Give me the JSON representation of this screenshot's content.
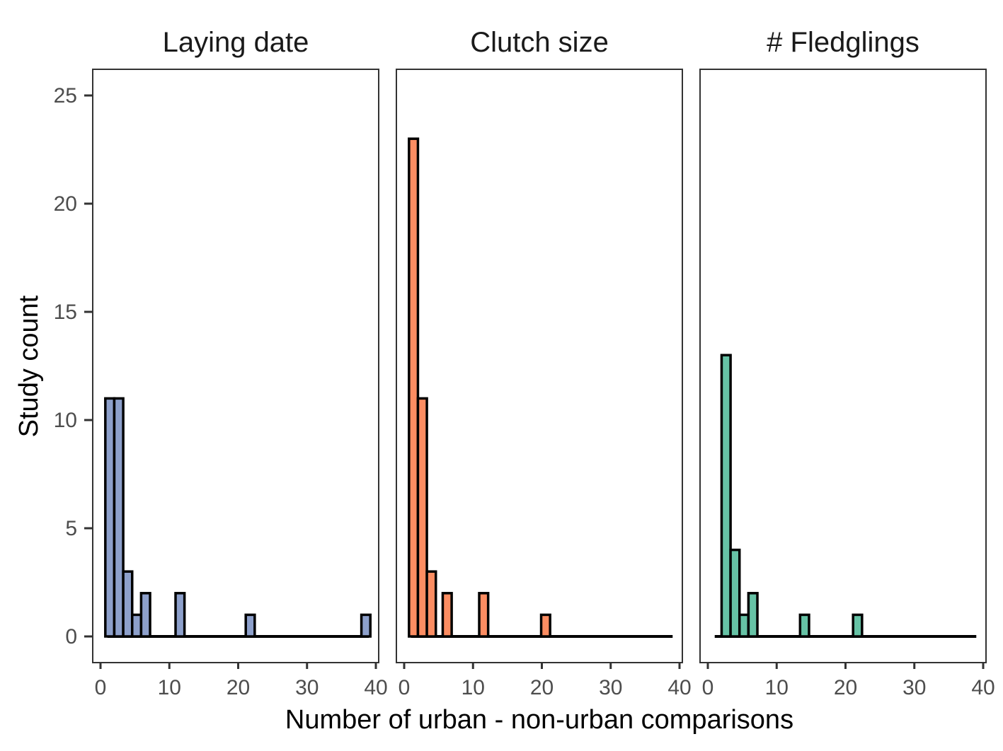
{
  "chart_data": {
    "type": "bar",
    "xlabel": "Number of urban - non-urban comparisons",
    "ylabel": "Study count",
    "xlim": [
      -1,
      40
    ],
    "ylim": [
      -1.2,
      26.2
    ],
    "x_ticks": [
      0,
      10,
      20,
      30,
      40
    ],
    "y_ticks": [
      0,
      5,
      10,
      15,
      20,
      25
    ],
    "grid": false,
    "bin_width": 1.3,
    "range": [
      1,
      39
    ],
    "panels": [
      {
        "title": "Laying date",
        "color": "#8DA0CB",
        "bars": [
          {
            "x0": 0.7,
            "count": 11
          },
          {
            "x0": 2.0,
            "count": 11
          },
          {
            "x0": 3.3,
            "count": 3
          },
          {
            "x0": 4.6,
            "count": 1
          },
          {
            "x0": 5.9,
            "count": 2
          },
          {
            "x0": 10.9,
            "count": 2
          },
          {
            "x0": 21.1,
            "count": 1
          },
          {
            "x0": 37.9,
            "count": 1
          }
        ]
      },
      {
        "title": "Clutch size",
        "color": "#FC8D62",
        "bars": [
          {
            "x0": 0.7,
            "count": 23
          },
          {
            "x0": 2.0,
            "count": 11
          },
          {
            "x0": 3.3,
            "count": 3
          },
          {
            "x0": 5.6,
            "count": 2
          },
          {
            "x0": 10.9,
            "count": 2
          },
          {
            "x0": 19.9,
            "count": 1
          }
        ]
      },
      {
        "title": "# Fledglings",
        "color": "#66C2A5",
        "bars": [
          {
            "x0": 2.0,
            "count": 13
          },
          {
            "x0": 3.3,
            "count": 4
          },
          {
            "x0": 4.6,
            "count": 1
          },
          {
            "x0": 5.9,
            "count": 2
          },
          {
            "x0": 13.4,
            "count": 1
          },
          {
            "x0": 21.1,
            "count": 1
          }
        ]
      }
    ]
  }
}
